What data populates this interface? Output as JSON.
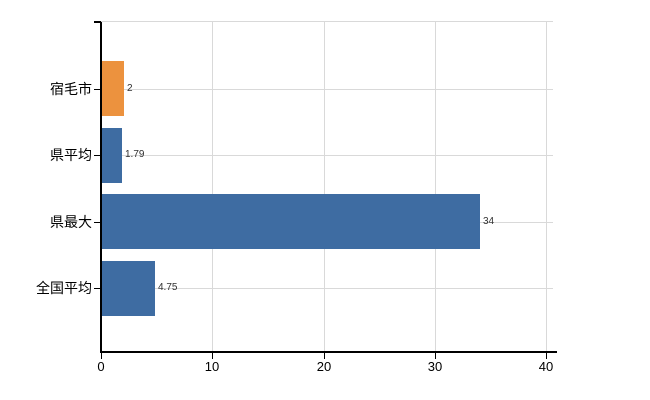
{
  "chart_data": {
    "type": "bar",
    "orientation": "horizontal",
    "title": "",
    "categories": [
      "宿毛市",
      "県平均",
      "県最大",
      "全国平均"
    ],
    "values": [
      2,
      1.79,
      34,
      4.75
    ],
    "value_labels": [
      "2",
      "1.79",
      "34",
      "4.75"
    ],
    "series": [
      {
        "name": "value",
        "values": [
          2,
          1.79,
          34,
          4.75
        ]
      }
    ],
    "bar_colors": [
      "#EC923E",
      "#3E6CA2",
      "#3E6CA2",
      "#3E6CA2"
    ],
    "xlim": [
      0,
      40
    ],
    "x_ticks": [
      0,
      10,
      20,
      30,
      40
    ],
    "x_tick_labels": [
      "0",
      "10",
      "20",
      "30",
      "40"
    ],
    "xlabel": "",
    "ylabel": "",
    "grid": true,
    "legend_position": "none"
  },
  "colors": {
    "background": "#FFFFFF",
    "axis": "#000000",
    "gridline": "#D9D9D9",
    "category_text": "#000000",
    "value_text": "#303030",
    "bar_blue": "#3E6CA2",
    "bar_orange": "#EC923E"
  }
}
